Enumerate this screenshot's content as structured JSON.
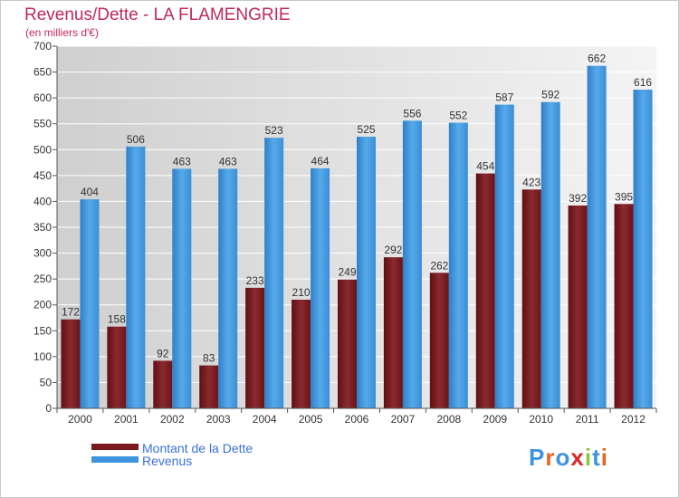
{
  "colors": {
    "dette": "#7a1a1e",
    "revenus": "#3d94dc",
    "title": "#c0285a",
    "legend_text": "#3a6fd8",
    "logo_letters": [
      "#3d94dc",
      "#e8641e",
      "#3d94dc",
      "#d62a2a",
      "#8cc63f",
      "#3d94dc",
      "#e8641e"
    ]
  },
  "logo": "Proxiti",
  "chart_data": {
    "type": "bar",
    "title": "Revenus/Dette - LA FLAMENGRIE",
    "subtitle": "(en milliers d'€)",
    "categories": [
      "2000",
      "2001",
      "2002",
      "2003",
      "2004",
      "2005",
      "2006",
      "2007",
      "2008",
      "2009",
      "2010",
      "2011",
      "2012"
    ],
    "series": [
      {
        "name": "Montant de la Dette",
        "color": "#7a1a1e",
        "values": [
          172,
          158,
          92,
          83,
          233,
          210,
          249,
          292,
          262,
          454,
          423,
          392,
          395
        ]
      },
      {
        "name": "Revenus",
        "color": "#3d94dc",
        "values": [
          404,
          506,
          463,
          463,
          523,
          464,
          525,
          556,
          552,
          587,
          592,
          662,
          616
        ]
      }
    ],
    "ylim": [
      0,
      700
    ],
    "yticks": [
      0,
      50,
      100,
      150,
      200,
      250,
      300,
      350,
      400,
      450,
      500,
      550,
      600,
      650,
      700
    ],
    "grid": true,
    "legend_position": "bottom-left"
  }
}
